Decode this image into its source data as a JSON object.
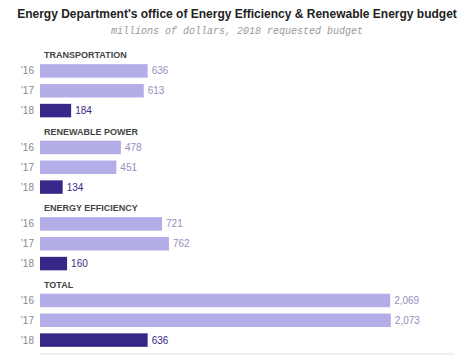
{
  "chart_data": {
    "type": "bar",
    "orientation": "horizontal",
    "title": "Energy Department's office of Energy Efficiency & Renewable Energy budget",
    "subtitle": "millions of dollars, 2018 requested budget",
    "categories": [
      "TRANSPORTATION",
      "RENEWABLE POWER",
      "ENERGY EFFICIENCY",
      "TOTAL"
    ],
    "series": [
      {
        "name": "’16",
        "color": "#b3aee8",
        "values": [
          636,
          478,
          721,
          2069
        ],
        "value_labels": [
          "636",
          "478",
          "721",
          "2,069"
        ]
      },
      {
        "name": "’17",
        "color": "#b3aee8",
        "values": [
          613,
          451,
          762,
          2073
        ],
        "value_labels": [
          "613",
          "451",
          "762",
          "2,073"
        ]
      },
      {
        "name": "’18",
        "color": "#352888",
        "values": [
          184,
          134,
          160,
          636
        ],
        "value_labels": [
          "184",
          "134",
          "160",
          "636"
        ]
      }
    ],
    "xlim": [
      0,
      2446.14
    ],
    "data_labels": true,
    "tick_labels": false,
    "grid": false
  }
}
